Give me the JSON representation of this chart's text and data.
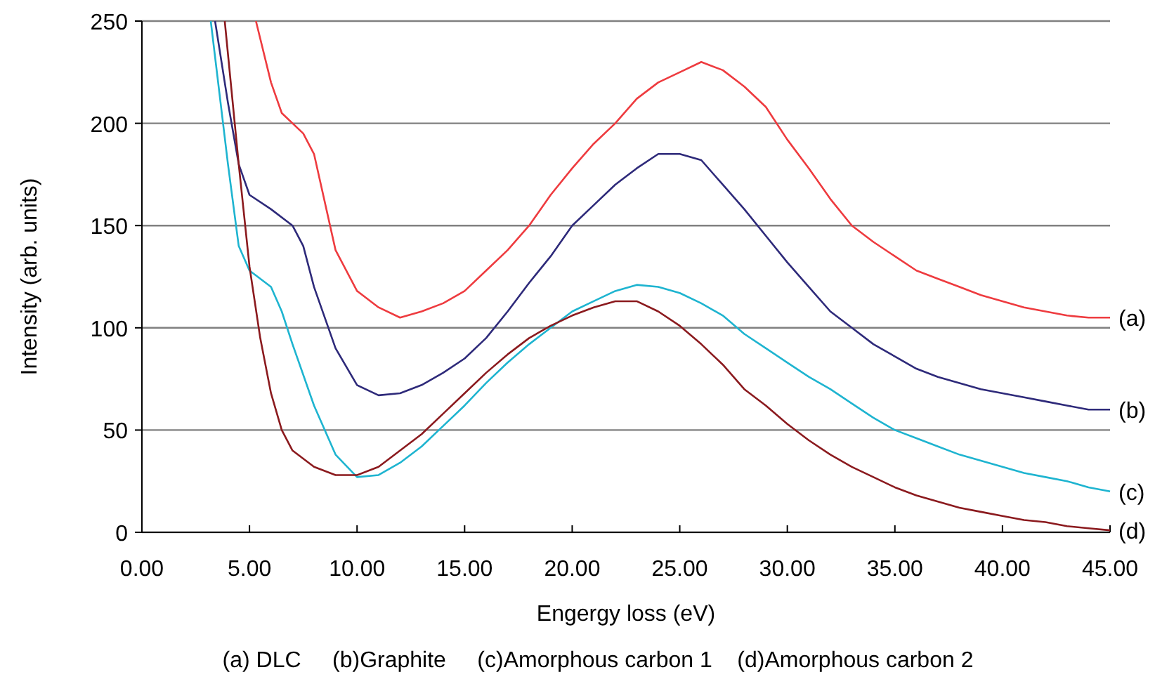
{
  "chart_data": {
    "type": "line",
    "xlabel": "Engergy loss (eV)",
    "ylabel": "Intensity (arb. units)",
    "xlim": [
      0,
      45
    ],
    "xticks": [
      {
        "value": 0,
        "label": "0.00"
      },
      {
        "value": 5,
        "label": "5.00"
      },
      {
        "value": 10,
        "label": "10.00"
      },
      {
        "value": 15,
        "label": "15.00"
      },
      {
        "value": 20,
        "label": "20.00"
      },
      {
        "value": 25,
        "label": "25.00"
      },
      {
        "value": 30,
        "label": "30.00"
      },
      {
        "value": 35,
        "label": "35.00"
      },
      {
        "value": 40,
        "label": "40.00"
      },
      {
        "value": 45,
        "label": "45.00"
      }
    ],
    "ylim": [
      0,
      250
    ],
    "yticks": [
      0,
      50,
      100,
      150,
      200,
      250
    ],
    "grid": "y",
    "legend": false,
    "marker": "none",
    "line_style": "solid",
    "annotations": [
      "(a) DLC     (b)Graphite     (c)Amorphous carbon 1    (d)Amorphous carbon 2"
    ],
    "series": [
      {
        "name": "(a)",
        "color": "#ee3b3f",
        "x": [
          5.3,
          6,
          6.5,
          7.5,
          8,
          9,
          10,
          11,
          12,
          13,
          14,
          15,
          16,
          17,
          18,
          19,
          20,
          21,
          22,
          23,
          24,
          25,
          26,
          27,
          28,
          29,
          30,
          31,
          32,
          33,
          34,
          35,
          36,
          37,
          38,
          39,
          40,
          41,
          42,
          43,
          44,
          45
        ],
        "values": [
          250,
          220,
          205,
          195,
          185,
          138,
          118,
          110,
          105,
          108,
          112,
          118,
          128,
          138,
          150,
          165,
          178,
          190,
          200,
          212,
          220,
          225,
          230,
          226,
          218,
          208,
          192,
          178,
          163,
          150,
          142,
          135,
          128,
          124,
          120,
          116,
          113,
          110,
          108,
          106,
          105,
          105
        ]
      },
      {
        "name": "(b)",
        "color": "#2e2a7a",
        "x": [
          3.4,
          4,
          4.5,
          5,
          6,
          7,
          7.5,
          8,
          9,
          10,
          11,
          12,
          13,
          14,
          15,
          16,
          17,
          18,
          19,
          20,
          21,
          22,
          23,
          24,
          25,
          26,
          27,
          28,
          29,
          30,
          31,
          32,
          33,
          34,
          35,
          36,
          37,
          38,
          39,
          40,
          41,
          42,
          43,
          44,
          45
        ],
        "values": [
          250,
          210,
          180,
          165,
          158,
          150,
          140,
          120,
          90,
          72,
          67,
          68,
          72,
          78,
          85,
          95,
          108,
          122,
          135,
          150,
          160,
          170,
          178,
          185,
          185,
          182,
          170,
          158,
          145,
          132,
          120,
          108,
          100,
          92,
          86,
          80,
          76,
          73,
          70,
          68,
          66,
          64,
          62,
          60,
          60
        ]
      },
      {
        "name": "(c)",
        "color": "#1eb4d0",
        "x": [
          3.2,
          4,
          4.5,
          5,
          6,
          6.5,
          7,
          8,
          9,
          10,
          11,
          12,
          13,
          14,
          15,
          16,
          17,
          18,
          19,
          20,
          21,
          22,
          23,
          24,
          25,
          26,
          27,
          28,
          29,
          30,
          31,
          32,
          33,
          34,
          35,
          36,
          37,
          38,
          39,
          40,
          41,
          42,
          43,
          44,
          45
        ],
        "values": [
          250,
          180,
          140,
          128,
          120,
          108,
          92,
          62,
          38,
          27,
          28,
          34,
          42,
          52,
          62,
          73,
          83,
          92,
          100,
          108,
          113,
          118,
          121,
          120,
          117,
          112,
          106,
          97,
          90,
          83,
          76,
          70,
          63,
          56,
          50,
          46,
          42,
          38,
          35,
          32,
          29,
          27,
          25,
          22,
          20
        ]
      },
      {
        "name": "(d)",
        "color": "#8b1a1e",
        "x": [
          3.85,
          4.5,
          5,
          5.5,
          6,
          6.5,
          7,
          8,
          9,
          10,
          11,
          12,
          13,
          14,
          15,
          16,
          17,
          18,
          19,
          20,
          21,
          22,
          23,
          24,
          25,
          26,
          27,
          28,
          29,
          30,
          31,
          32,
          33,
          34,
          35,
          36,
          37,
          38,
          39,
          40,
          41,
          42,
          43,
          44,
          45
        ],
        "values": [
          250,
          180,
          130,
          95,
          68,
          50,
          40,
          32,
          28,
          28,
          32,
          40,
          48,
          58,
          68,
          78,
          87,
          95,
          101,
          106,
          110,
          113,
          113,
          108,
          101,
          92,
          82,
          70,
          62,
          53,
          45,
          38,
          32,
          27,
          22,
          18,
          15,
          12,
          10,
          8,
          6,
          5,
          3,
          2,
          1
        ]
      }
    ]
  }
}
